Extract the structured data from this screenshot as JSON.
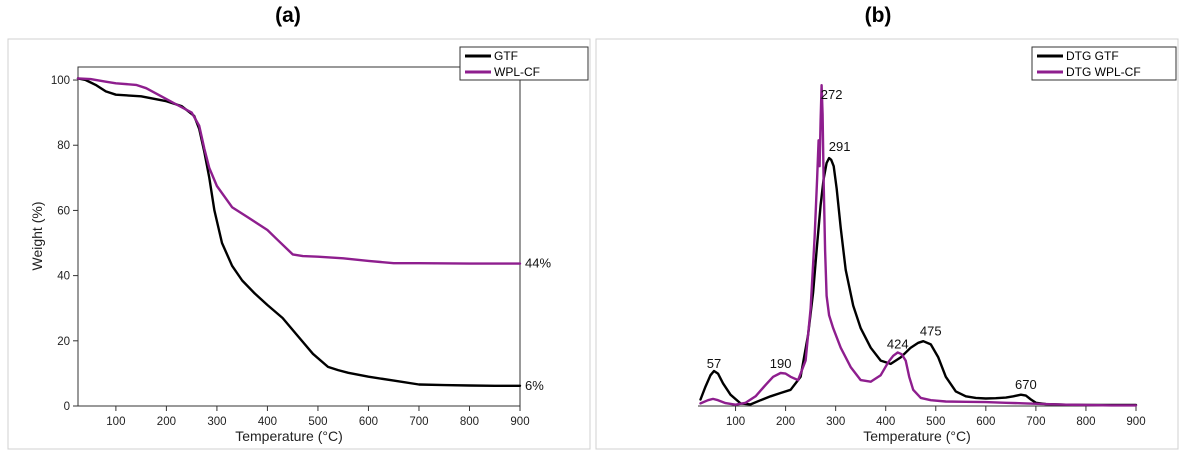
{
  "colors": {
    "gtf": "#000000",
    "wpl": "#8e1e8e",
    "axis": "#333333"
  },
  "chart_data": [
    {
      "id": "a",
      "type": "line",
      "panel_label": "(a)",
      "xlabel": "Temperature (°C)",
      "ylabel": "Weight (%)",
      "xlim": [
        25,
        900
      ],
      "ylim": [
        0,
        104
      ],
      "xticks": [
        100,
        200,
        300,
        400,
        500,
        600,
        700,
        800,
        900
      ],
      "yticks": [
        0,
        20,
        40,
        60,
        80,
        100
      ],
      "show_y_ticks": true,
      "legend": "top-right",
      "grid": false,
      "series": [
        {
          "name": "GTF",
          "color": "#000000",
          "x": [
            25,
            40,
            60,
            80,
            100,
            150,
            200,
            230,
            255,
            265,
            275,
            285,
            295,
            310,
            330,
            350,
            375,
            400,
            430,
            460,
            490,
            520,
            540,
            560,
            600,
            650,
            700,
            750,
            800,
            850,
            900
          ],
          "y": [
            100.5,
            100,
            98.5,
            96.5,
            95.5,
            95,
            93.5,
            92,
            89,
            85,
            78,
            70,
            60,
            50,
            43,
            38.5,
            34.5,
            31,
            27,
            21.5,
            16,
            12,
            11,
            10.2,
            9,
            7.8,
            6.6,
            6.4,
            6.3,
            6.2,
            6.2
          ]
        },
        {
          "name": "WPL-CF",
          "color": "#8e1e8e",
          "x": [
            25,
            50,
            80,
            100,
            140,
            160,
            190,
            220,
            250,
            265,
            275,
            285,
            300,
            330,
            360,
            400,
            420,
            440,
            450,
            470,
            500,
            550,
            600,
            650,
            700,
            800,
            900
          ],
          "y": [
            100.5,
            100.3,
            99.5,
            99,
            98.5,
            97.5,
            95,
            92.5,
            90,
            86,
            79,
            73,
            67.5,
            61,
            58,
            54,
            51,
            48,
            46.5,
            46,
            45.8,
            45.3,
            44.5,
            43.8,
            43.8,
            43.7,
            43.7
          ]
        }
      ],
      "annotations": [
        {
          "text": "44%",
          "x": 910,
          "y": 43.7
        },
        {
          "text": "6%",
          "x": 910,
          "y": 6.2
        }
      ]
    },
    {
      "id": "b",
      "type": "line",
      "panel_label": "(b)",
      "xlabel": "Temperature (°C)",
      "ylabel": "",
      "xlim": [
        25,
        900
      ],
      "ylim": [
        0,
        100
      ],
      "xticks": [
        100,
        200,
        300,
        400,
        500,
        600,
        700,
        800,
        900
      ],
      "yticks": [],
      "show_y_ticks": false,
      "legend": "top-right",
      "grid": false,
      "series": [
        {
          "name": "DTG GTF",
          "color": "#000000",
          "x": [
            30,
            40,
            50,
            57,
            65,
            75,
            90,
            110,
            130,
            150,
            170,
            190,
            210,
            230,
            245,
            255,
            262,
            270,
            276,
            282,
            287,
            291,
            296,
            302,
            310,
            320,
            335,
            350,
            370,
            390,
            410,
            430,
            450,
            465,
            475,
            490,
            505,
            520,
            540,
            560,
            580,
            600,
            620,
            640,
            655,
            670,
            680,
            690,
            700,
            720,
            760,
            800,
            850,
            900
          ],
          "y": [
            2,
            6,
            9.5,
            10.8,
            10,
            7,
            3.5,
            0.8,
            0.5,
            1.8,
            3,
            4,
            5,
            9,
            22,
            35,
            48,
            62,
            70,
            75,
            76.5,
            76,
            74,
            67,
            55,
            42,
            31,
            24,
            18,
            14,
            13,
            15,
            18,
            19.5,
            20,
            19,
            15,
            9,
            4.5,
            3,
            2.5,
            2.3,
            2.4,
            2.6,
            3,
            3.5,
            3.2,
            2,
            1,
            0.6,
            0.4,
            0.3,
            0.3,
            0.3
          ]
        },
        {
          "name": "DTG WPL-CF",
          "color": "#8e1e8e",
          "x": [
            30,
            45,
            55,
            65,
            80,
            100,
            120,
            140,
            160,
            175,
            190,
            200,
            210,
            225,
            240,
            250,
            258,
            263,
            266,
            268,
            270,
            272,
            274,
            276,
            279,
            282,
            287,
            295,
            310,
            330,
            350,
            370,
            390,
            405,
            415,
            424,
            432,
            440,
            447,
            455,
            470,
            490,
            520,
            560,
            600,
            640,
            680,
            720,
            760,
            800,
            850,
            900
          ],
          "y": [
            0.8,
            1.8,
            2.2,
            1.8,
            0.9,
            0.4,
            1,
            3,
            6.5,
            9,
            10.2,
            10,
            9,
            8,
            14,
            30,
            52,
            70,
            82,
            74,
            88,
            99,
            90,
            70,
            48,
            34,
            28,
            24,
            18,
            12,
            8,
            7.5,
            9.5,
            13.5,
            15.5,
            16.5,
            16,
            14,
            9,
            5,
            2.5,
            1.8,
            1.4,
            1.3,
            1.2,
            1,
            0.8,
            0.6,
            0.4,
            0.3,
            0.2,
            0.2
          ]
        }
      ],
      "annotations": [
        {
          "text": "57",
          "x": 57,
          "y": 13
        },
        {
          "text": "190",
          "x": 190,
          "y": 13
        },
        {
          "text": "272",
          "x": 292,
          "y": 96
        },
        {
          "text": "291",
          "x": 308,
          "y": 80
        },
        {
          "text": "424",
          "x": 424,
          "y": 19
        },
        {
          "text": "475",
          "x": 490,
          "y": 23
        },
        {
          "text": "670",
          "x": 680,
          "y": 6.5
        }
      ]
    }
  ]
}
